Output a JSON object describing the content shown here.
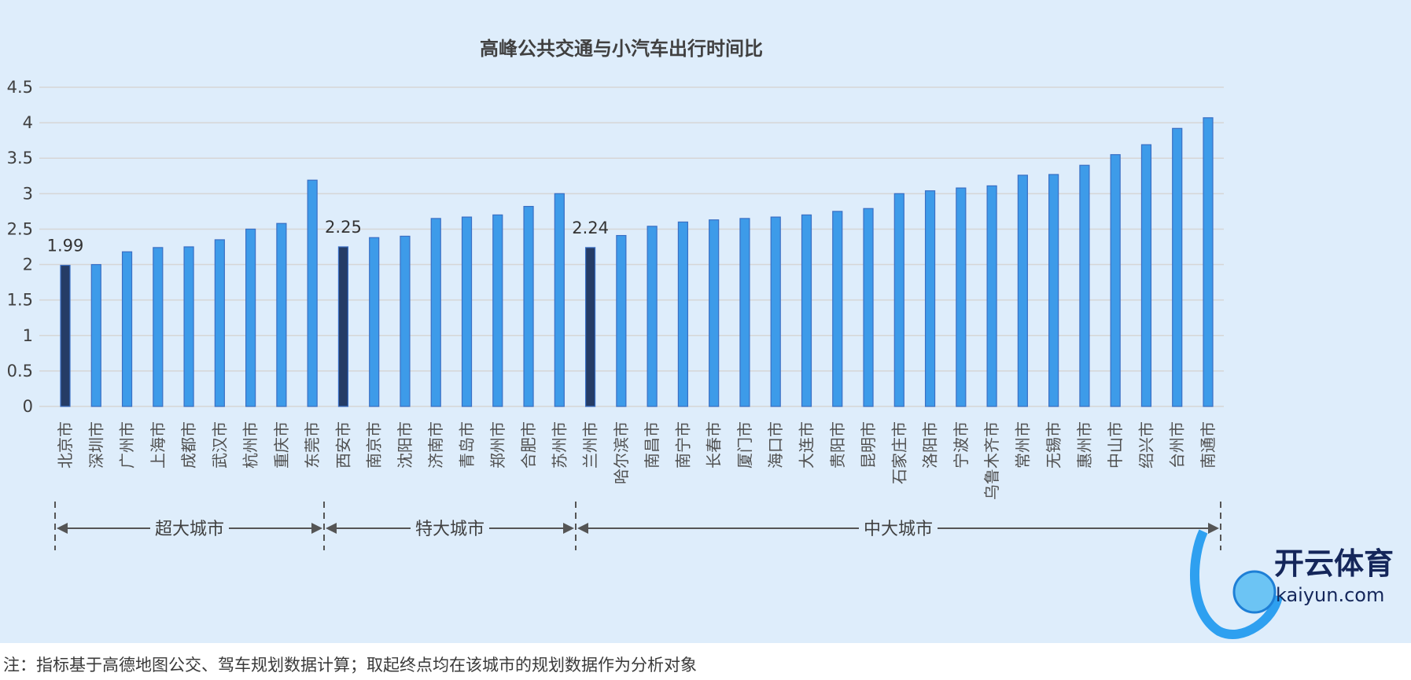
{
  "chart_data": {
    "type": "bar",
    "title": "高峰公共交通与小汽车出行时间比",
    "xlabel": "",
    "ylabel": "",
    "ylim": [
      0,
      4.5
    ],
    "yticks": [
      "0",
      "0.5",
      "1",
      "1.5",
      "2",
      "2.5",
      "3",
      "3.5",
      "4",
      "4.5"
    ],
    "grid": true,
    "categories": [
      "北京市",
      "深圳市",
      "广州市",
      "上海市",
      "成都市",
      "武汉市",
      "杭州市",
      "重庆市",
      "东莞市",
      "西安市",
      "南京市",
      "沈阳市",
      "济南市",
      "青岛市",
      "郑州市",
      "合肥市",
      "苏州市",
      "兰州市",
      "哈尔滨市",
      "南昌市",
      "南宁市",
      "长春市",
      "厦门市",
      "海口市",
      "大连市",
      "贵阳市",
      "昆明市",
      "石家庄市",
      "洛阳市",
      "宁波市",
      "乌鲁木齐市",
      "常州市",
      "无锡市",
      "惠州市",
      "中山市",
      "绍兴市",
      "台州市",
      "南通市"
    ],
    "values": [
      1.99,
      2.0,
      2.18,
      2.24,
      2.25,
      2.35,
      2.5,
      2.58,
      3.19,
      2.25,
      2.38,
      2.4,
      2.65,
      2.67,
      2.7,
      2.82,
      3.0,
      2.24,
      2.41,
      2.54,
      2.6,
      2.63,
      2.65,
      2.67,
      2.7,
      2.75,
      2.79,
      3.0,
      3.04,
      3.08,
      3.11,
      3.26,
      3.27,
      3.4,
      3.55,
      3.69,
      3.92,
      4.07
    ],
    "highlighted": [
      0,
      9,
      17
    ],
    "data_labels": [
      {
        "index": 0,
        "text": "1.99"
      },
      {
        "index": 9,
        "text": "2.25"
      },
      {
        "index": 17,
        "text": "2.24"
      }
    ],
    "groups": [
      {
        "label": "超大城市",
        "from": 0,
        "to": 8
      },
      {
        "label": "特大城市",
        "from": 9,
        "to": 16
      },
      {
        "label": "中大城市",
        "from": 17,
        "to": 37
      }
    ],
    "colors": {
      "bar": "#3d9be9",
      "bar_edge": "#3a6fc4",
      "highlight": "#253c66",
      "grid": "#d6d6d6",
      "background": "#deedfb"
    }
  },
  "footnote": "注：指标基于高德地图公交、驾车规划数据计算；取起终点均在该城市的规划数据作为分析对象",
  "watermark": {
    "brand": "开云体育",
    "domain": "kaiyun.com"
  }
}
